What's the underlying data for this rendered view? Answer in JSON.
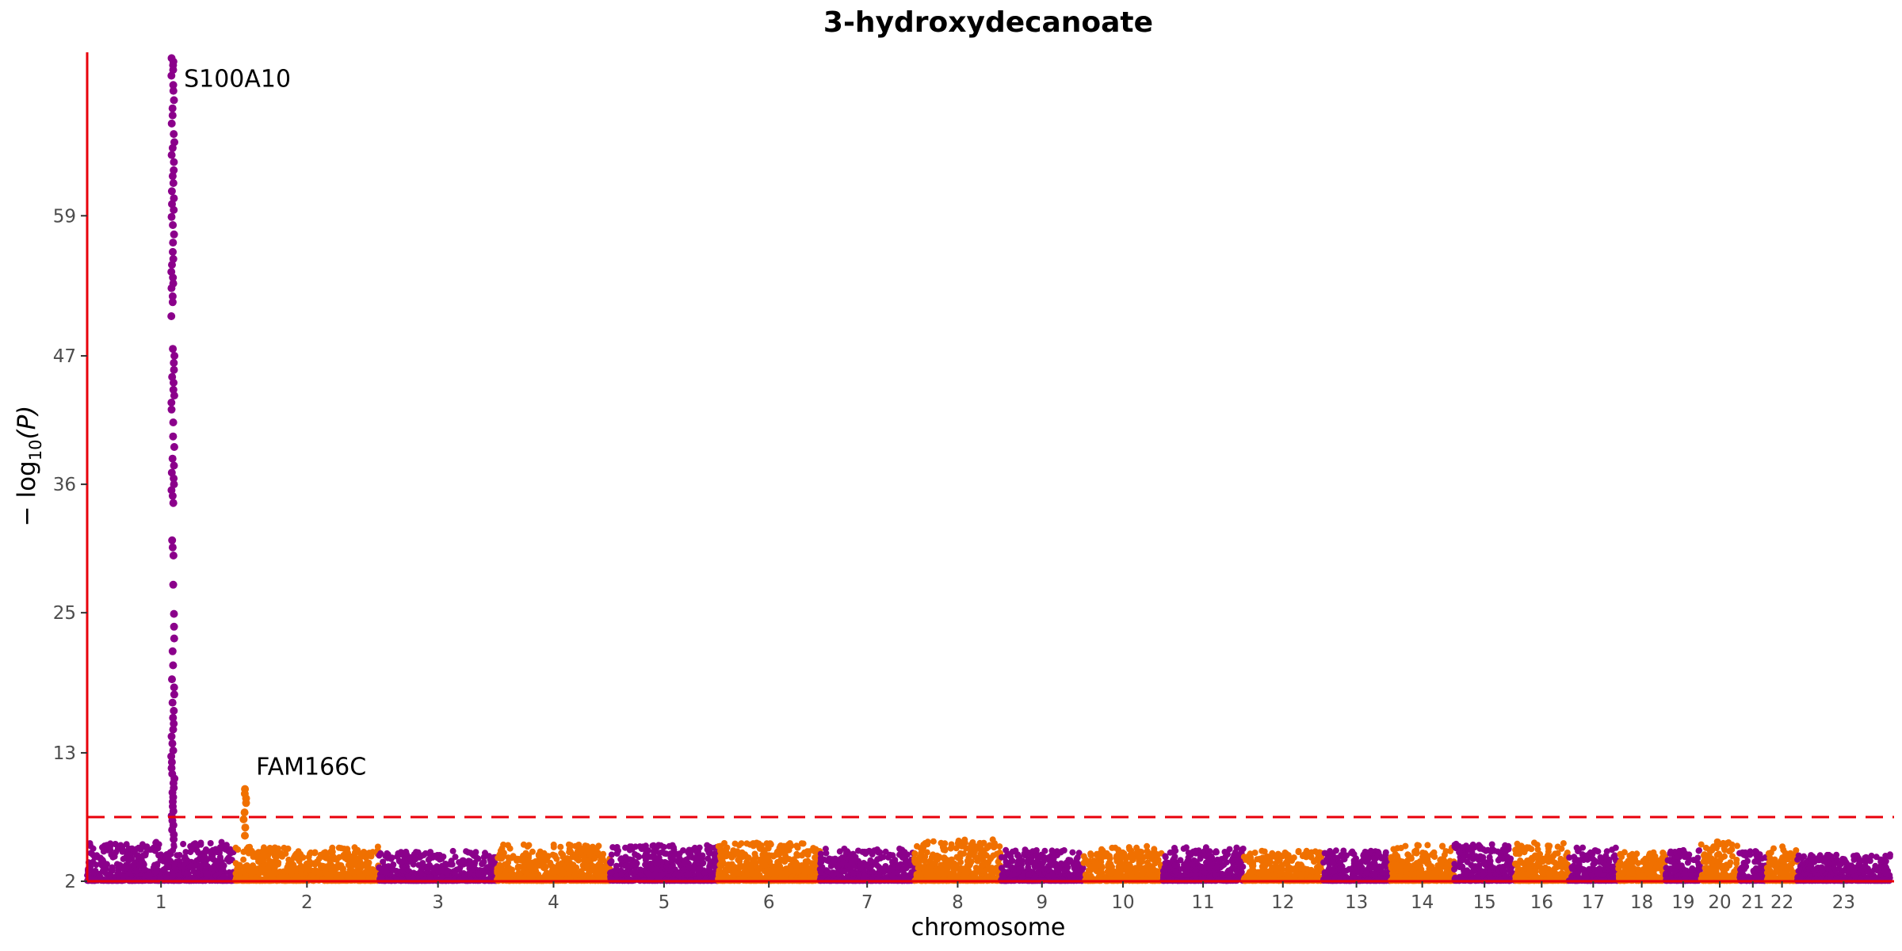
{
  "chart_data": {
    "type": "scatter",
    "subtype": "manhattan",
    "title": "3-hydroxydecanoate",
    "xlabel": "chromosome",
    "ylabel_parts": {
      "prefix": "− log",
      "subscript": "10",
      "suffix": "(P)"
    },
    "y_ticks": [
      "2",
      "13",
      "25",
      "36",
      "47",
      "59"
    ],
    "ylim": [
      2,
      73
    ],
    "significance_line": 7.5,
    "colors": {
      "odd_chromosomes": "#8b008b",
      "even_chromosomes": "#f07000",
      "axis": "#e8000b",
      "threshold": "#e8000b"
    },
    "chromosomes": [
      "1",
      "2",
      "3",
      "4",
      "5",
      "6",
      "7",
      "8",
      "9",
      "10",
      "11",
      "12",
      "13",
      "14",
      "15",
      "16",
      "17",
      "18",
      "19",
      "20",
      "21",
      "22",
      "23"
    ],
    "chromosome_widths": [
      248,
      242,
      198,
      190,
      181,
      171,
      159,
      145,
      138,
      134,
      135,
      133,
      114,
      107,
      102,
      90,
      83,
      80,
      59,
      64,
      47,
      51,
      156
    ],
    "baseline_peak": [
      5.4,
      5.0,
      4.6,
      5.2,
      5.1,
      5.3,
      4.8,
      5.6,
      4.7,
      5.0,
      4.9,
      4.6,
      4.7,
      5.1,
      5.2,
      5.3,
      4.9,
      4.5,
      4.7,
      5.4,
      4.6,
      5.0,
      4.3
    ],
    "peaks": [
      {
        "label": "S100A10",
        "chromosome": "1",
        "position_fraction": 0.58,
        "points": [
          72.5,
          72.2,
          71.9,
          71.5,
          71.0,
          70.2,
          69.7,
          68.9,
          68.2,
          67.6,
          66.9,
          66.0,
          65.3,
          64.8,
          64.2,
          63.6,
          62.9,
          62.4,
          61.8,
          61.1,
          60.5,
          60.0,
          59.5,
          58.9,
          58.2,
          57.4,
          56.7,
          55.9,
          55.3,
          54.8,
          54.2,
          53.7,
          53.2,
          52.8,
          52.1,
          51.6,
          50.4,
          47.6,
          47.0,
          46.4,
          45.8,
          45.2,
          44.7,
          44.1,
          43.6,
          43.0,
          42.4,
          41.3,
          40.1,
          39.2,
          38.2,
          37.6,
          37.0,
          36.5,
          36.0,
          35.5,
          35.0,
          34.4,
          31.2,
          30.6,
          29.9,
          27.4,
          24.9,
          23.8,
          22.8,
          21.7,
          20.5,
          19.3,
          18.6,
          18.0,
          17.3,
          16.6,
          16.0,
          15.5,
          15.0,
          14.4,
          13.8,
          13.2,
          12.7,
          12.2,
          11.7,
          11.2,
          10.8,
          10.4,
          10.0,
          9.6,
          9.2,
          8.8,
          8.4,
          8.0,
          7.6,
          7.2,
          6.8,
          6.4,
          6.0,
          5.6
        ]
      },
      {
        "label": "FAM166C",
        "chromosome": "2",
        "position_fraction": 0.07,
        "points": [
          9.9,
          9.5,
          9.1,
          8.7,
          7.9,
          7.3,
          6.6,
          5.9
        ]
      }
    ],
    "grid": false,
    "legend": "none"
  }
}
